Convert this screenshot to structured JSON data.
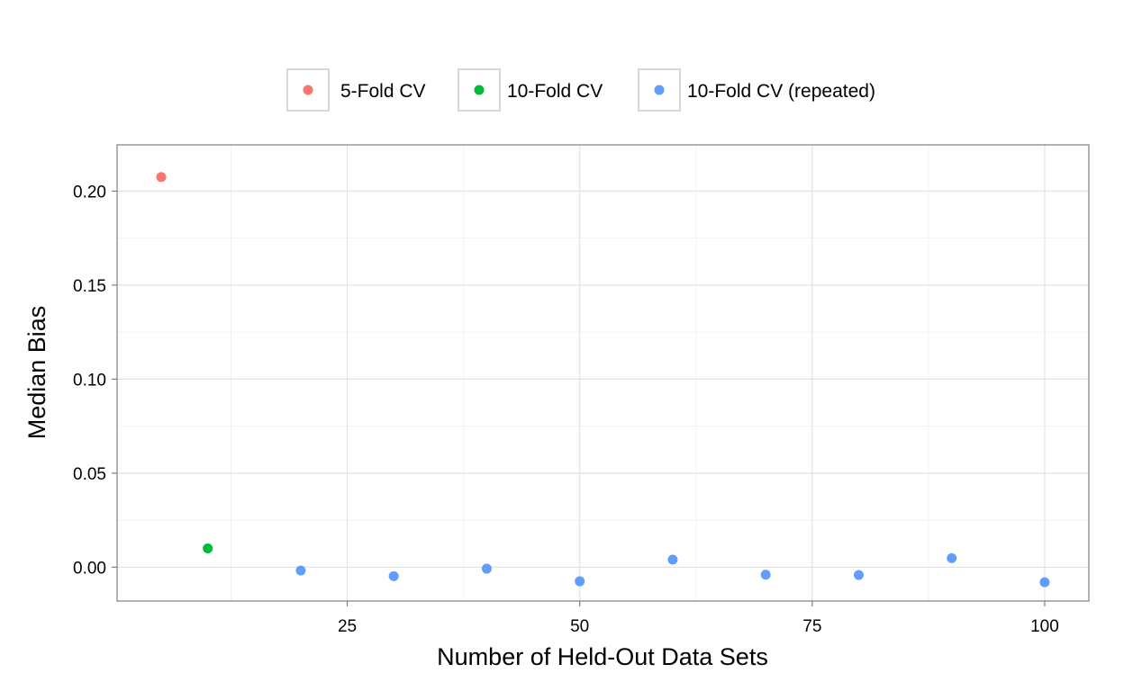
{
  "chart_data": {
    "type": "scatter",
    "title": "",
    "xlabel": "Number of Held-Out Data Sets",
    "ylabel": "Median Bias",
    "xlim": [
      0.25,
      104.75
    ],
    "ylim": [
      -0.018,
      0.2246
    ],
    "x_ticks": [
      25,
      50,
      75,
      100
    ],
    "x_minor_ticks": [
      12.5,
      37.5,
      62.5,
      87.5
    ],
    "y_ticks": [
      0.0,
      0.05,
      0.1,
      0.15,
      0.2
    ],
    "y_tick_labels": [
      "0.00",
      "0.05",
      "0.10",
      "0.15",
      "0.20"
    ],
    "y_minor_ticks": [
      0.025,
      0.075,
      0.125,
      0.175
    ],
    "grid": true,
    "legend": {
      "placement": "top",
      "orientation": "horizontal"
    },
    "series": [
      {
        "name": "5-Fold CV",
        "color": "#F8766D",
        "points": [
          {
            "x": 5,
            "y": 0.2075
          }
        ]
      },
      {
        "name": "10-Fold CV",
        "color": "#00BA38",
        "points": [
          {
            "x": 10,
            "y": 0.01
          }
        ]
      },
      {
        "name": "10-Fold CV (repeated)",
        "color": "#619CFF",
        "points": [
          {
            "x": 20,
            "y": -0.0018
          },
          {
            "x": 30,
            "y": -0.0048
          },
          {
            "x": 40,
            "y": -0.0008
          },
          {
            "x": 50,
            "y": -0.0075
          },
          {
            "x": 60,
            "y": 0.004
          },
          {
            "x": 70,
            "y": -0.004
          },
          {
            "x": 80,
            "y": -0.0042
          },
          {
            "x": 90,
            "y": 0.0048
          },
          {
            "x": 100,
            "y": -0.008
          }
        ]
      }
    ]
  }
}
